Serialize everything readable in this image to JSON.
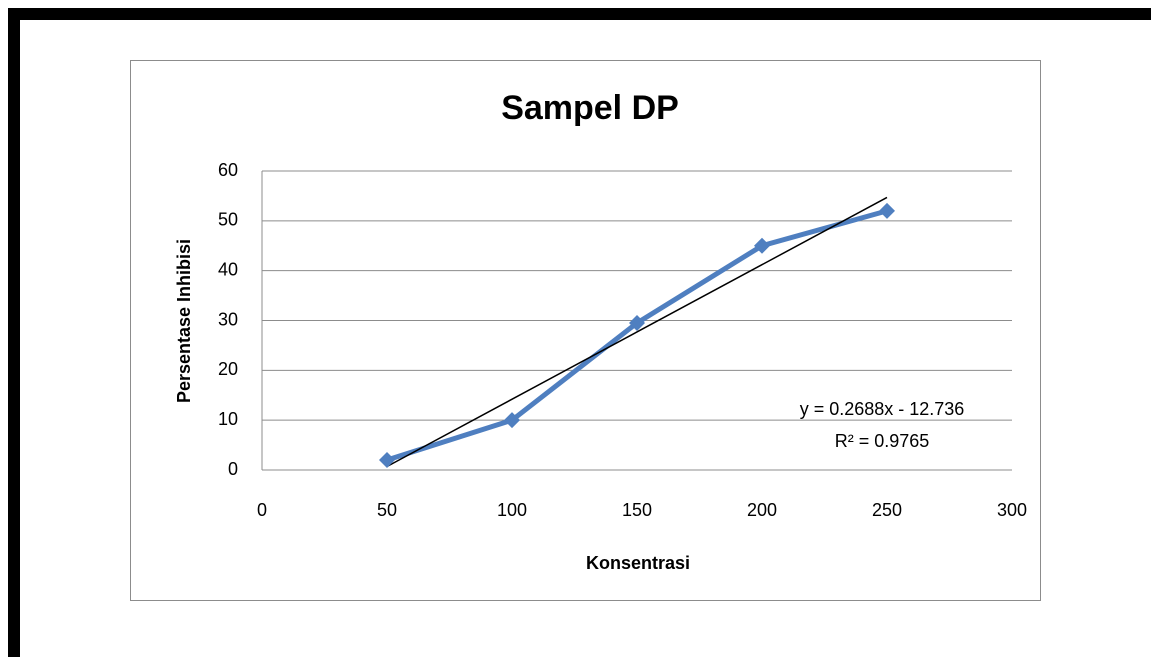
{
  "chart_data": {
    "type": "line",
    "title": "Sampel DP",
    "x_label": "Konsentrasi",
    "y_label": "Persentase Inhibisi",
    "x": [
      50,
      100,
      150,
      200,
      250
    ],
    "series": [
      {
        "name": "Sampel DP",
        "color": "#4f7fc0",
        "values": [
          2,
          10,
          29.5,
          45,
          52
        ]
      }
    ],
    "trendline": {
      "equation": "y = 0.2688x - 12.736",
      "r_squared": "R² = 0.9765",
      "color": "#000000"
    },
    "xlim": [
      0,
      300
    ],
    "xticks": [
      0,
      50,
      100,
      150,
      200,
      250,
      300
    ],
    "ylim": [
      0,
      60
    ],
    "yticks": [
      0,
      10,
      20,
      30,
      40,
      50,
      60
    ],
    "grid": true,
    "legend": false
  }
}
